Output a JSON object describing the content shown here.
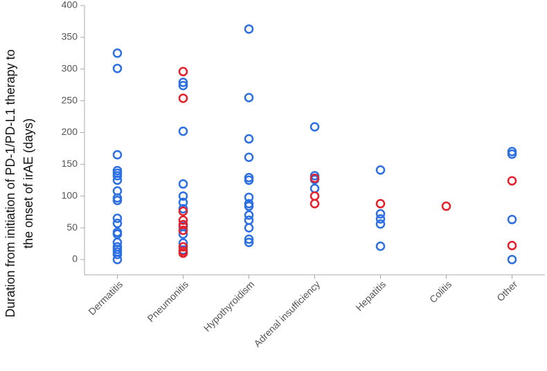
{
  "chart_data": {
    "type": "scatter",
    "y_label": [
      "Duration from initiation of PD-1/PD-L1 therapy to",
      "the onset of irAE (days)"
    ],
    "categories": [
      "Dermatitis",
      "Pneumonitis",
      "Hypothyroidism",
      "Adrenal insufficiency",
      "Hepatitis",
      "Colitis",
      "Other"
    ],
    "ylim": [
      -24,
      400
    ],
    "yticks": [
      0,
      50,
      100,
      150,
      200,
      250,
      300,
      350,
      400
    ],
    "series": [
      {
        "color": "#2b6fe3",
        "x": [
          "Dermatitis",
          "Dermatitis",
          "Dermatitis",
          "Dermatitis",
          "Dermatitis",
          "Dermatitis",
          "Dermatitis",
          "Dermatitis",
          "Dermatitis",
          "Dermatitis",
          "Dermatitis",
          "Dermatitis",
          "Dermatitis",
          "Dermatitis",
          "Dermatitis",
          "Dermatitis",
          "Dermatitis",
          "Dermatitis",
          "Dermatitis",
          "Dermatitis",
          "Pneumonitis",
          "Pneumonitis",
          "Pneumonitis",
          "Pneumonitis",
          "Pneumonitis",
          "Pneumonitis",
          "Pneumonitis",
          "Pneumonitis",
          "Pneumonitis",
          "Pneumonitis",
          "Pneumonitis",
          "Hypothyroidism",
          "Hypothyroidism",
          "Hypothyroidism",
          "Hypothyroidism",
          "Hypothyroidism",
          "Hypothyroidism",
          "Hypothyroidism",
          "Hypothyroidism",
          "Hypothyroidism",
          "Hypothyroidism",
          "Hypothyroidism",
          "Hypothyroidism",
          "Hypothyroidism",
          "Hypothyroidism",
          "Adrenal insufficiency",
          "Adrenal insufficiency",
          "Adrenal insufficiency",
          "Adrenal insufficiency",
          "Hepatitis",
          "Hepatitis",
          "Hepatitis",
          "Hepatitis",
          "Hepatitis",
          "Other",
          "Other",
          "Other",
          "Other"
        ],
        "values": [
          325,
          301,
          165,
          140,
          136,
          132,
          125,
          108,
          97,
          93,
          65,
          57,
          43,
          40,
          27,
          20,
          16,
          12,
          8,
          0,
          279,
          274,
          202,
          119,
          100,
          90,
          80,
          52,
          40,
          26,
          15,
          363,
          255,
          190,
          161,
          129,
          125,
          98,
          88,
          84,
          70,
          62,
          50,
          32,
          27,
          209,
          132,
          126,
          112,
          141,
          72,
          64,
          56,
          21,
          170,
          166,
          63,
          0
        ]
      },
      {
        "color": "#e5202a",
        "x": [
          "Pneumonitis",
          "Pneumonitis",
          "Pneumonitis",
          "Pneumonitis",
          "Pneumonitis",
          "Pneumonitis",
          "Pneumonitis",
          "Pneumonitis",
          "Pneumonitis",
          "Adrenal insufficiency",
          "Adrenal insufficiency",
          "Adrenal insufficiency",
          "Hepatitis",
          "Colitis",
          "Other",
          "Other"
        ],
        "values": [
          296,
          254,
          76,
          62,
          55,
          46,
          20,
          13,
          10,
          128,
          100,
          88,
          88,
          84,
          124,
          22
        ]
      }
    ]
  }
}
